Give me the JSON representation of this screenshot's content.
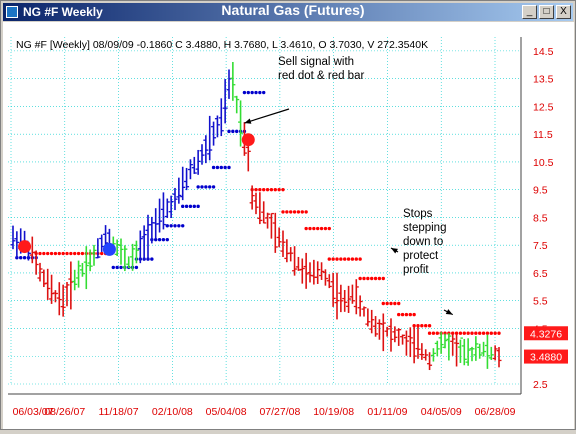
{
  "window": {
    "title": "NG #F Weekly",
    "chart_title": "Natural Gas (Futures)",
    "min_glyph": "_",
    "max_glyph": "□",
    "close_glyph": "X"
  },
  "colors": {
    "up": "#33dd33",
    "down": "#dd1111",
    "neutral": "#1111cc",
    "grid": "#00cccc",
    "axis_text": "#dd0000",
    "stop_high": "#ff0000",
    "stop_low": "#0000cc"
  },
  "chart_data": {
    "type": "bar",
    "subtype": "ohlc",
    "info_line": "NG #F [Weekly] 08/09/09  -0.1860 C 3.4880, H 3.7680, L 3.4610, O 3.7030, V 272.3540K",
    "x_labels": [
      "06/03/07",
      "08/26/07",
      "11/18/07",
      "02/10/08",
      "05/04/08",
      "07/27/08",
      "10/19/08",
      "01/11/09",
      "04/05/09",
      "06/28/09"
    ],
    "y_labels": [
      "14.5",
      "13.5",
      "12.5",
      "11.5",
      "10.5",
      "9.5",
      "8.5",
      "7.5",
      "6.5",
      "5.5",
      "4.5",
      "3.5",
      "2.5"
    ],
    "ylim": [
      2.5,
      15.0
    ],
    "grid": true,
    "price_tags": [
      "4.3276",
      "3.4880"
    ],
    "price_tag_values": [
      4.3276,
      3.488
    ],
    "annotations": [
      {
        "text": [
          "Sell signal with",
          "red dot & red bar"
        ],
        "arrow_to_week": 60,
        "arrow_to_value": 11.9
      },
      {
        "text": [
          "Stops",
          "stepping",
          "down to",
          "protect",
          "profit"
        ],
        "arrow_to_week": 98,
        "arrow_to_value": 7.4
      },
      {
        "text": [],
        "arrow_to_week": 114,
        "arrow_to_value": 5.0
      }
    ],
    "signal_dots": [
      {
        "week": 3,
        "value": 7.45,
        "color": "red"
      },
      {
        "week": 25,
        "value": 7.35,
        "color": "blue"
      },
      {
        "week": 61,
        "value": 11.3,
        "color": "red"
      }
    ],
    "week_anchors": [
      [
        0,
        7.7
      ],
      [
        3,
        7.6
      ],
      [
        5,
        7.2
      ],
      [
        7,
        6.5
      ],
      [
        10,
        5.8
      ],
      [
        13,
        5.5
      ],
      [
        16,
        6.3
      ],
      [
        19,
        6.8
      ],
      [
        22,
        7.3
      ],
      [
        24,
        7.9
      ],
      [
        26,
        7.6
      ],
      [
        28,
        7.2
      ],
      [
        30,
        6.9
      ],
      [
        32,
        7.2
      ],
      [
        34,
        7.6
      ],
      [
        36,
        8.2
      ],
      [
        38,
        8.4
      ],
      [
        40,
        8.8
      ],
      [
        42,
        9.1
      ],
      [
        44,
        9.6
      ],
      [
        46,
        10.2
      ],
      [
        48,
        10.5
      ],
      [
        50,
        11.0
      ],
      [
        52,
        11.5
      ],
      [
        54,
        12.0
      ],
      [
        56,
        13.2
      ],
      [
        57,
        13.4
      ],
      [
        58,
        12.6
      ],
      [
        59,
        12.0
      ],
      [
        60,
        11.3
      ],
      [
        61,
        10.8
      ],
      [
        62,
        9.3
      ],
      [
        64,
        8.8
      ],
      [
        66,
        8.4
      ],
      [
        68,
        7.9
      ],
      [
        70,
        7.5
      ],
      [
        72,
        7.2
      ],
      [
        74,
        6.8
      ],
      [
        76,
        6.5
      ],
      [
        78,
        6.4
      ],
      [
        80,
        6.6
      ],
      [
        82,
        6.2
      ],
      [
        84,
        5.7
      ],
      [
        86,
        5.4
      ],
      [
        88,
        5.8
      ],
      [
        90,
        5.3
      ],
      [
        92,
        4.9
      ],
      [
        94,
        4.6
      ],
      [
        96,
        4.5
      ],
      [
        98,
        4.3
      ],
      [
        100,
        4.2
      ],
      [
        102,
        4.0
      ],
      [
        104,
        3.9
      ],
      [
        106,
        3.7
      ],
      [
        108,
        3.4
      ],
      [
        110,
        3.8
      ],
      [
        112,
        4.0
      ],
      [
        114,
        3.9
      ],
      [
        116,
        3.7
      ],
      [
        118,
        3.5
      ],
      [
        120,
        3.8
      ],
      [
        122,
        3.7
      ],
      [
        124,
        3.6
      ],
      [
        126,
        3.5
      ]
    ],
    "bar_colors": [
      [
        0,
        "neutral"
      ],
      [
        5,
        "down"
      ],
      [
        16,
        "up"
      ],
      [
        22,
        "neutral"
      ],
      [
        26,
        "up"
      ],
      [
        33,
        "neutral"
      ],
      [
        57,
        "up"
      ],
      [
        60,
        "down"
      ],
      [
        109,
        "up"
      ],
      [
        114,
        "down"
      ],
      [
        116,
        "up"
      ],
      [
        125,
        "down"
      ]
    ],
    "stop_segments": [
      {
        "from": 1,
        "to": 6,
        "value": 7.05,
        "color": "stop_low"
      },
      {
        "from": 6,
        "to": 24,
        "value": 7.2,
        "color": "stop_high"
      },
      {
        "from": 26,
        "to": 32,
        "value": 6.7,
        "color": "stop_low"
      },
      {
        "from": 32,
        "to": 36,
        "value": 7.0,
        "color": "stop_low"
      },
      {
        "from": 36,
        "to": 40,
        "value": 7.7,
        "color": "stop_low"
      },
      {
        "from": 40,
        "to": 44,
        "value": 8.2,
        "color": "stop_low"
      },
      {
        "from": 44,
        "to": 48,
        "value": 8.9,
        "color": "stop_low"
      },
      {
        "from": 48,
        "to": 52,
        "value": 9.6,
        "color": "stop_low"
      },
      {
        "from": 52,
        "to": 56,
        "value": 10.3,
        "color": "stop_low"
      },
      {
        "from": 56,
        "to": 60,
        "value": 11.6,
        "color": "stop_low"
      },
      {
        "from": 60,
        "to": 65,
        "value": 13.0,
        "color": "stop_low"
      },
      {
        "from": 62,
        "to": 70,
        "value": 9.5,
        "color": "stop_high"
      },
      {
        "from": 70,
        "to": 76,
        "value": 8.7,
        "color": "stop_high"
      },
      {
        "from": 76,
        "to": 82,
        "value": 8.1,
        "color": "stop_high"
      },
      {
        "from": 82,
        "to": 90,
        "value": 7.0,
        "color": "stop_high"
      },
      {
        "from": 90,
        "to": 96,
        "value": 6.3,
        "color": "stop_high"
      },
      {
        "from": 96,
        "to": 100,
        "value": 5.4,
        "color": "stop_high"
      },
      {
        "from": 100,
        "to": 104,
        "value": 5.0,
        "color": "stop_high"
      },
      {
        "from": 104,
        "to": 108,
        "value": 4.6,
        "color": "stop_high"
      },
      {
        "from": 108,
        "to": 126,
        "value": 4.33,
        "color": "stop_high"
      }
    ]
  }
}
